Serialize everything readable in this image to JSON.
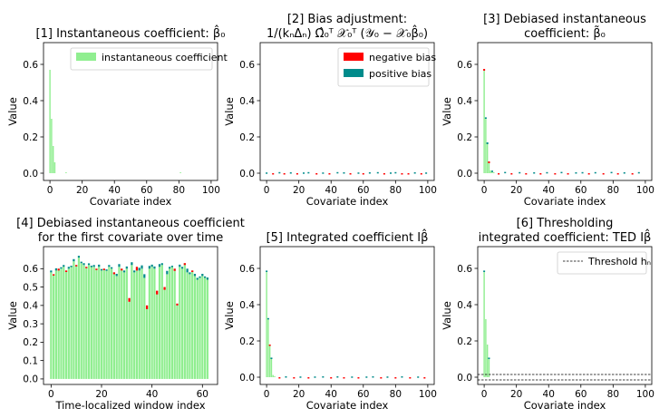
{
  "colors": {
    "bar": "#90ee90",
    "negative_bias": "#ff0000",
    "positive_bias": "#008b8b",
    "threshold": "#000000"
  },
  "chart_data": [
    {
      "id": "p1",
      "type": "bar",
      "title_lines": [
        "[1] Instantaneous coefficient: β̂₀"
      ],
      "xlabel": "Covariate index",
      "ylabel": "Value",
      "xlim": [
        -4,
        104
      ],
      "ylim": [
        -0.04,
        0.72
      ],
      "xticks": [
        0,
        20,
        40,
        60,
        80,
        100
      ],
      "yticks": [
        0.0,
        0.2,
        0.4,
        0.6
      ],
      "ytick_labels": [
        "0.0",
        "0.2",
        "0.4",
        "0.6"
      ],
      "legend": [
        {
          "label": "instantaneous coefficient",
          "color": "#90ee90"
        }
      ],
      "x": [
        0,
        1,
        2,
        3,
        10,
        81
      ],
      "values": [
        0.57,
        0.3,
        0.15,
        0.06,
        0.005,
        0.005
      ]
    },
    {
      "id": "p2",
      "type": "bar",
      "title_lines": [
        "[2] Bias adjustment:",
        "1/(kₙΔₙ) Ω̂₀ᵀ 𝒳₀ᵀ (𝒴₀ − 𝒳₀β̂₀)"
      ],
      "xlabel": "Covariate index",
      "ylabel": "Value",
      "xlim": [
        -4,
        104
      ],
      "ylim": [
        -0.04,
        0.72
      ],
      "xticks": [
        0,
        20,
        40,
        60,
        80,
        100
      ],
      "yticks": [
        0.0,
        0.2,
        0.4,
        0.6
      ],
      "ytick_labels": [
        "0.0",
        "0.2",
        "0.4",
        "0.6"
      ],
      "legend": [
        {
          "label": "negative bias",
          "color": "#ff0000"
        },
        {
          "label": "positive bias",
          "color": "#008b8b"
        }
      ],
      "x": [
        0,
        4,
        8,
        11,
        15,
        19,
        23,
        26,
        31,
        35,
        39,
        44,
        48,
        52,
        57,
        60,
        64,
        69,
        73,
        77,
        80,
        84,
        88,
        92,
        96,
        99
      ],
      "values": [
        0.004,
        -0.005,
        0.006,
        -0.004,
        0.005,
        -0.006,
        0.004,
        0.006,
        -0.005,
        0.004,
        -0.004,
        0.006,
        0.005,
        -0.006,
        0.004,
        -0.005,
        0.005,
        0.006,
        -0.004,
        0.004,
        0.006,
        -0.005,
        -0.004,
        0.005,
        -0.006,
        0.004
      ]
    },
    {
      "id": "p3",
      "type": "bar",
      "title_lines": [
        "[3] Debiased instantaneous",
        "coefficient: β̃₀"
      ],
      "xlabel": "Covariate index",
      "ylabel": "Value",
      "xlim": [
        -4,
        104
      ],
      "ylim": [
        -0.04,
        0.72
      ],
      "xticks": [
        0,
        20,
        40,
        60,
        80,
        100
      ],
      "yticks": [
        0.0,
        0.2,
        0.4,
        0.6
      ],
      "ytick_labels": [
        "0.0",
        "0.2",
        "0.4",
        "0.6"
      ],
      "x": [
        0,
        1,
        2,
        3,
        4,
        5,
        6
      ],
      "values": [
        0.575,
        0.3,
        0.16,
        0.065,
        0.015,
        0.008,
        0.005
      ],
      "bias_x": [
        0,
        1,
        2,
        3,
        5,
        9,
        13,
        17,
        22,
        26,
        31,
        35,
        39,
        44,
        48,
        52,
        57,
        61,
        65,
        69,
        74,
        79,
        83,
        87,
        92,
        96
      ],
      "bias_values": [
        -0.01,
        0.008,
        0.01,
        -0.01,
        0.006,
        -0.006,
        0.007,
        -0.005,
        0.006,
        -0.007,
        0.005,
        -0.006,
        0.006,
        -0.005,
        0.007,
        -0.006,
        0.005,
        0.006,
        -0.007,
        0.006,
        -0.005,
        0.007,
        -0.006,
        0.005,
        -0.006,
        0.006
      ]
    },
    {
      "id": "p4",
      "type": "bar",
      "title_lines": [
        "[4] Debiased instantaneous coefficient",
        "for the first covariate over time"
      ],
      "xlabel": "Time-localized window index",
      "ylabel": "Value",
      "xlim": [
        -3,
        66
      ],
      "ylim": [
        -0.03,
        0.72
      ],
      "xticks": [
        0,
        20,
        40,
        60
      ],
      "yticks": [
        0.0,
        0.1,
        0.2,
        0.3,
        0.4,
        0.5,
        0.6
      ],
      "ytick_labels": [
        "0.0",
        "0.1",
        "0.2",
        "0.3",
        "0.4",
        "0.5",
        "0.6"
      ],
      "values": [
        0.58,
        0.57,
        0.59,
        0.6,
        0.6,
        0.61,
        0.59,
        0.6,
        0.61,
        0.64,
        0.62,
        0.66,
        0.63,
        0.62,
        0.61,
        0.62,
        0.61,
        0.61,
        0.6,
        0.61,
        0.59,
        0.6,
        0.59,
        0.61,
        0.6,
        0.58,
        0.56,
        0.61,
        0.6,
        0.58,
        0.6,
        0.44,
        0.62,
        0.58,
        0.61,
        0.59,
        0.6,
        0.55,
        0.4,
        0.6,
        0.61,
        0.6,
        0.48,
        0.61,
        0.62,
        0.5,
        0.57,
        0.6,
        0.61,
        0.6,
        0.41,
        0.61,
        0.6,
        0.63,
        0.58,
        0.57,
        0.59,
        0.56,
        0.54,
        0.55,
        0.56,
        0.55,
        0.54
      ],
      "adjust": [
        0.01,
        -0.005,
        0.012,
        -0.01,
        0.008,
        0.01,
        -0.008,
        0.01,
        0.006,
        0.012,
        -0.006,
        0.01,
        0.008,
        0.01,
        -0.007,
        0.009,
        0.006,
        0.01,
        -0.006,
        0.012,
        0.008,
        -0.008,
        0.006,
        0.01,
        0.008,
        -0.01,
        0.012,
        0.015,
        -0.01,
        0.01,
        0.012,
        -0.02,
        0.015,
        0.01,
        -0.02,
        0.015,
        0.018,
        0.02,
        -0.02,
        0.015,
        0.012,
        0.012,
        -0.02,
        0.015,
        0.01,
        -0.015,
        0.018,
        0.01,
        0.006,
        -0.012,
        -0.01,
        0.012,
        0.01,
        -0.01,
        0.02,
        0.01,
        -0.008,
        0.012,
        0.01,
        0.008,
        0.012,
        0.008,
        0.012
      ]
    },
    {
      "id": "p5",
      "type": "bar",
      "title_lines": [
        "[5] Integrated coefficient Iβ̂"
      ],
      "xlabel": "Covariate index",
      "ylabel": "Value",
      "xlim": [
        -4,
        104
      ],
      "ylim": [
        -0.04,
        0.72
      ],
      "xticks": [
        0,
        20,
        40,
        60,
        80,
        100
      ],
      "yticks": [
        0.0,
        0.2,
        0.4,
        0.6
      ],
      "ytick_labels": [
        "0.0",
        "0.2",
        "0.4",
        "0.6"
      ],
      "x": [
        0,
        1,
        2,
        3,
        4,
        5
      ],
      "values": [
        0.58,
        0.32,
        0.18,
        0.1,
        0.012,
        0.006
      ],
      "bias_x": [
        0,
        1,
        2,
        3,
        8,
        12,
        17,
        21,
        26,
        30,
        35,
        40,
        44,
        48,
        53,
        57,
        62,
        66,
        71,
        75,
        80,
        84,
        89,
        94,
        98
      ],
      "bias_values": [
        0.008,
        0.006,
        -0.006,
        0.008,
        -0.004,
        0.005,
        -0.004,
        0.004,
        -0.005,
        0.004,
        0.005,
        -0.004,
        0.005,
        -0.004,
        0.004,
        -0.005,
        0.004,
        0.005,
        -0.004,
        0.004,
        -0.004,
        0.005,
        -0.005,
        0.004,
        -0.004
      ]
    },
    {
      "id": "p6",
      "type": "bar",
      "title_lines": [
        "[6] Thresholding",
        "integrated coefficient: TED Iβ̂"
      ],
      "xlabel": "Covariate index",
      "ylabel": "Value",
      "xlim": [
        -4,
        104
      ],
      "ylim": [
        -0.04,
        0.72
      ],
      "xticks": [
        0,
        20,
        40,
        60,
        80,
        100
      ],
      "yticks": [
        0.0,
        0.2,
        0.4,
        0.6
      ],
      "ytick_labels": [
        "0.0",
        "0.2",
        "0.4",
        "0.6"
      ],
      "legend": [
        {
          "label": "Threshold hₙ",
          "color": "#000000",
          "style": "dashed"
        }
      ],
      "x": [
        0,
        1,
        2,
        3
      ],
      "values": [
        0.58,
        0.32,
        0.18,
        0.1
      ],
      "bias_x": [
        0,
        3
      ],
      "bias_values": [
        0.008,
        0.008
      ],
      "thresholds": [
        0.015,
        -0.015
      ]
    }
  ]
}
